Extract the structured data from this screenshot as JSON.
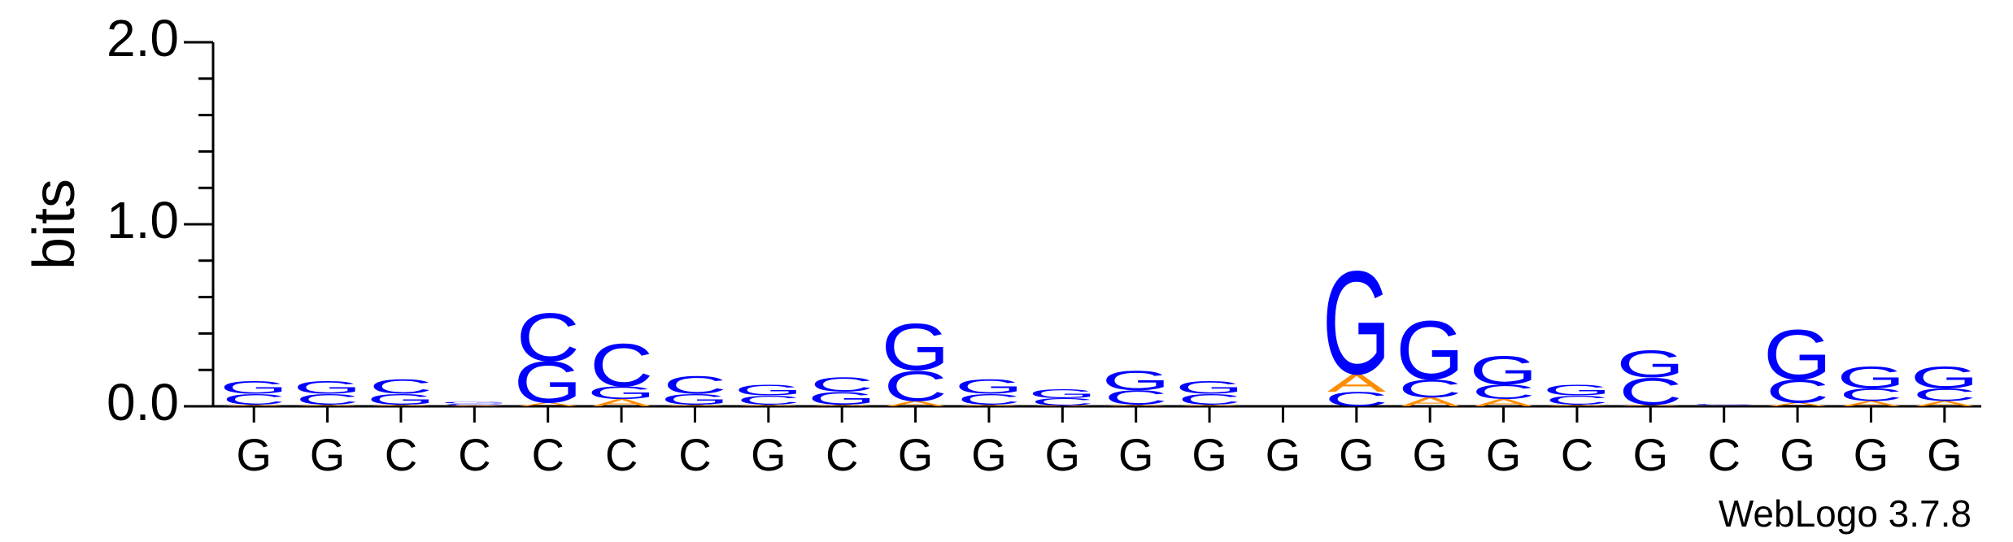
{
  "chart_data": {
    "type": "logo",
    "y_label": "bits",
    "footer": "WebLogo 3.7.8",
    "categories": [
      "G",
      "G",
      "C",
      "C",
      "C",
      "C",
      "C",
      "G",
      "C",
      "G",
      "G",
      "G",
      "G",
      "G",
      "G",
      "G",
      "G",
      "G",
      "C",
      "G",
      "C",
      "G",
      "G",
      "G"
    ],
    "series": [
      {
        "name": "A",
        "color": "#ff8c00",
        "values": [
          0.01,
          0.01,
          0.01,
          0.005,
          0.02,
          0.04,
          0.01,
          0.01,
          0.01,
          0.03,
          0.01,
          0.005,
          0.01,
          0.01,
          0,
          0.1,
          0.05,
          0.04,
          0.01,
          0.01,
          0.003,
          0.02,
          0.03,
          0.03
        ]
      },
      {
        "name": "C",
        "color": "#0000ff",
        "values": [
          0.06,
          0.06,
          0.08,
          0.01,
          0.27,
          0.24,
          0.1,
          0.05,
          0.08,
          0.17,
          0.06,
          0.04,
          0.08,
          0.06,
          0,
          0.08,
          0.1,
          0.08,
          0.05,
          0.15,
          0.005,
          0.13,
          0.07,
          0.07
        ]
      },
      {
        "name": "G",
        "color": "#0000ff",
        "values": [
          0.07,
          0.07,
          0.06,
          0.01,
          0.23,
          0.07,
          0.06,
          0.06,
          0.07,
          0.26,
          0.08,
          0.05,
          0.11,
          0.07,
          0,
          0.58,
          0.33,
          0.16,
          0.06,
          0.15,
          0.003,
          0.28,
          0.12,
          0.12
        ]
      }
    ],
    "ylim": [
      0,
      2.0
    ],
    "yticks": [
      {
        "value": 0,
        "label": "0.0"
      },
      {
        "value": 1,
        "label": "1.0"
      },
      {
        "value": 2,
        "label": "2.0"
      }
    ],
    "yminorticks": [
      0.2,
      0.4,
      0.6,
      0.8,
      1.2,
      1.4,
      1.6,
      1.8
    ]
  }
}
